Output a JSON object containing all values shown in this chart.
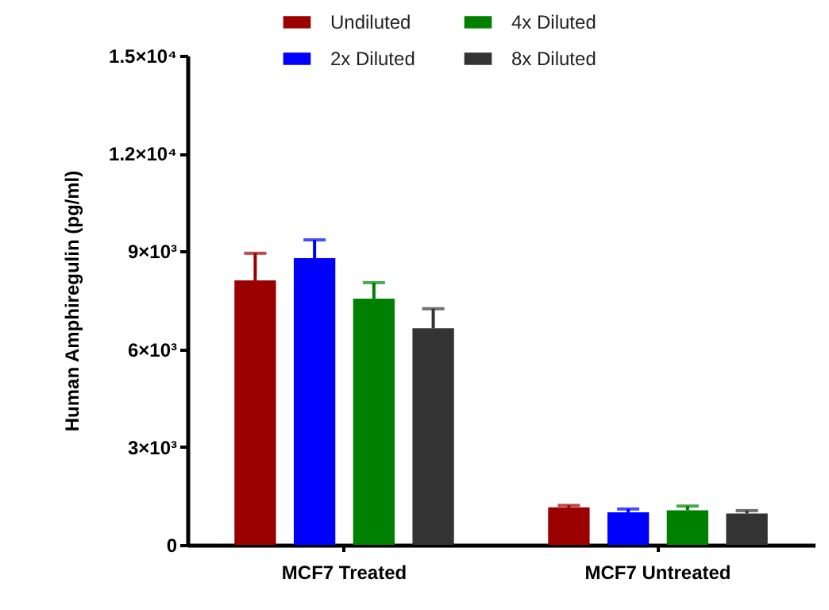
{
  "chart_data": {
    "type": "bar",
    "ylabel": "Human Amphiregulin (pg/ml)",
    "categories": [
      "MCF7  Treated",
      "MCF7 Untreated"
    ],
    "series": [
      {
        "name": "Undiluted",
        "color": "#9b0000",
        "values": [
          8110,
          1150
        ],
        "errors": [
          [
            8110,
            8940
          ],
          [
            1150,
            1210
          ]
        ]
      },
      {
        "name": "2x Diluted",
        "color": "#0000ff",
        "values": [
          8790,
          1000
        ],
        "errors": [
          [
            8790,
            9350
          ],
          [
            1000,
            1100
          ]
        ]
      },
      {
        "name": "4x Diluted",
        "color": "#008000",
        "values": [
          7550,
          1060
        ],
        "errors": [
          [
            7550,
            8040
          ],
          [
            1060,
            1190
          ]
        ]
      },
      {
        "name": "8x Diluted",
        "color": "#333333",
        "values": [
          6640,
          960
        ],
        "errors": [
          [
            6640,
            7240
          ],
          [
            960,
            1050
          ]
        ]
      }
    ],
    "ylim": [
      0,
      15000
    ],
    "yticks": [
      0,
      {
        "value": 3000,
        "label": "3×10³"
      },
      {
        "value": 6000,
        "label": "6×10³"
      },
      {
        "value": 9000,
        "label": "9×10³"
      },
      {
        "value": 12000,
        "label": "1.2×10⁴"
      },
      {
        "value": 15000,
        "label": "1.5×10⁴"
      }
    ],
    "grid": false,
    "legend": "top"
  }
}
